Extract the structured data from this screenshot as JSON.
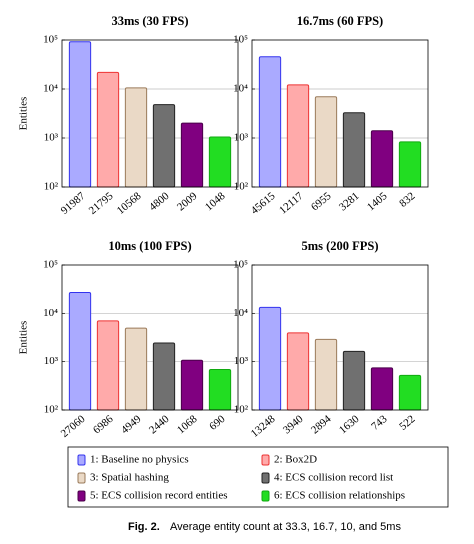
{
  "chart_data": [
    {
      "type": "bar",
      "title": "33ms (30 FPS)",
      "y_label": "Entities",
      "log_scale": true,
      "grid": true,
      "values": [
        91987,
        21795,
        10568,
        4800,
        2009,
        1048
      ],
      "ylim": [
        100,
        100000
      ],
      "yticks": [
        {
          "value": 100,
          "label": "10²"
        },
        {
          "value": 1000,
          "label": "10³"
        },
        {
          "value": 10000,
          "label": "10⁴"
        },
        {
          "value": 100000,
          "label": "10⁵"
        }
      ]
    },
    {
      "type": "bar",
      "title": "16.7ms (60 FPS)",
      "log_scale": true,
      "grid": true,
      "values": [
        45615,
        12117,
        6955,
        3281,
        1405,
        832
      ],
      "ylim": [
        100,
        100000
      ],
      "yticks": [
        {
          "value": 100,
          "label": "10²"
        },
        {
          "value": 1000,
          "label": "10³"
        },
        {
          "value": 10000,
          "label": "10⁴"
        },
        {
          "value": 100000,
          "label": "10⁵"
        }
      ]
    },
    {
      "type": "bar",
      "title": "10ms (100 FPS)",
      "y_label": "Entities",
      "log_scale": true,
      "grid": true,
      "values": [
        27060,
        6986,
        4949,
        2440,
        1068,
        690
      ],
      "ylim": [
        100,
        100000
      ],
      "yticks": [
        {
          "value": 100,
          "label": "10²"
        },
        {
          "value": 1000,
          "label": "10³"
        },
        {
          "value": 10000,
          "label": "10⁴"
        },
        {
          "value": 100000,
          "label": "10⁵"
        }
      ]
    },
    {
      "type": "bar",
      "title": "5ms (200 FPS)",
      "log_scale": true,
      "grid": true,
      "values": [
        13248,
        3940,
        2894,
        1630,
        743,
        522
      ],
      "ylim": [
        100,
        100000
      ],
      "yticks": [
        {
          "value": 100,
          "label": "10²"
        },
        {
          "value": 1000,
          "label": "10³"
        },
        {
          "value": 10000,
          "label": "10⁴"
        },
        {
          "value": 100000,
          "label": "10⁵"
        }
      ]
    }
  ],
  "legend": {
    "entries": [
      {
        "name": "1: Baseline no physics",
        "color": "#aaaaff",
        "edge": "#3333ee"
      },
      {
        "name": "2: Box2D",
        "color": "#ffaaaa",
        "edge": "#ee3333"
      },
      {
        "name": "3: Spatial hashing",
        "color": "#ead9c6",
        "edge": "#9a7a5a"
      },
      {
        "name": "4: ECS collision record list",
        "color": "#707070",
        "edge": "#222222"
      },
      {
        "name": "5: ECS collision record entities",
        "color": "#800080",
        "edge": "#4a004a"
      },
      {
        "name": "6: ECS collision relationships",
        "color": "#22dd22",
        "edge": "#11aa11"
      }
    ]
  },
  "caption": {
    "label": "Fig. 2.",
    "text": "Average entity count at 33.3, 16.7, 10, and 5ms"
  }
}
